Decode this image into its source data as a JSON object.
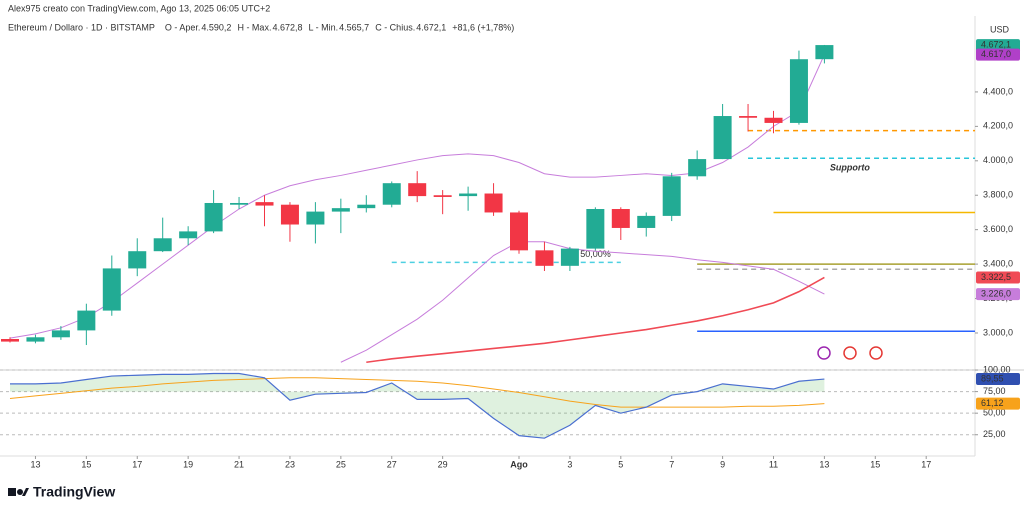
{
  "chart_data": {
    "type": "candlestick",
    "header": "Alex975 creato con TradingView.com, Ago 13, 2025 06:05 UTC+2",
    "symbol": "Ethereum / Dollaro · 1D · BITSTAMP",
    "ohlc_legend": [
      {
        "label": "O - Aper.",
        "value": "4.590,2"
      },
      {
        "label": "H - Max.",
        "value": "4.672,8"
      },
      {
        "label": "L - Min.",
        "value": "4.565,7"
      },
      {
        "label": "C - Chius.",
        "value": "4.672,1"
      }
    ],
    "change": "+81,6 (+1,78%)",
    "currency": "USD",
    "brand": "TradingView",
    "categories": [
      null,
      "13",
      null,
      "15",
      null,
      "17",
      null,
      "19",
      null,
      "21",
      null,
      "23",
      null,
      "25",
      null,
      "27",
      null,
      "29",
      null,
      null,
      "Ago",
      null,
      "3",
      null,
      "5",
      null,
      "7",
      null,
      "9",
      null,
      "11",
      null,
      "13",
      null,
      "15",
      null,
      "17",
      null
    ],
    "open": [
      2965,
      2950,
      2975,
      3015,
      3130,
      3375,
      3475,
      3550,
      3590,
      3745,
      3760,
      3745,
      3630,
      3705,
      3725,
      3745,
      3870,
      3800,
      3795,
      3810,
      3700,
      3480,
      3390,
      3490,
      3720,
      3610,
      3680,
      3910,
      4010,
      4260,
      4250,
      4220,
      4590.2,
      null,
      null,
      null,
      null,
      null
    ],
    "high": [
      2975,
      2990,
      3040,
      3170,
      3450,
      3550,
      3670,
      3620,
      3830,
      3790,
      3800,
      3760,
      3760,
      3780,
      3800,
      3880,
      3940,
      3830,
      3850,
      3870,
      3710,
      3530,
      3500,
      3730,
      3730,
      3700,
      3930,
      4060,
      4330,
      4330,
      4290,
      4640,
      4672.8,
      null,
      null,
      null,
      null,
      null
    ],
    "low": [
      2945,
      2940,
      2960,
      2930,
      3100,
      3330,
      3470,
      3510,
      3580,
      3720,
      3620,
      3530,
      3520,
      3580,
      3700,
      3730,
      3760,
      3690,
      3710,
      3680,
      3460,
      3360,
      3360,
      3480,
      3540,
      3560,
      3650,
      3890,
      4010,
      4170,
      4160,
      4210,
      4565.7,
      null,
      null,
      null,
      null,
      null
    ],
    "close": [
      2950,
      2975,
      3015,
      3130,
      3375,
      3475,
      3550,
      3590,
      3755,
      3755,
      3740,
      3630,
      3705,
      3725,
      3745,
      3870,
      3795,
      3790,
      3810,
      3700,
      3480,
      3390,
      3490,
      3720,
      3610,
      3680,
      3910,
      4010,
      4260,
      4250,
      4220,
      4590,
      4672.1,
      null,
      null,
      null,
      null,
      null
    ],
    "up_color": "#22ab94",
    "down_color": "#f23645",
    "overlays": [
      {
        "color": "#c77ddb",
        "values": [
          2970,
          2995,
          3030,
          3090,
          3180,
          3290,
          3400,
          3510,
          3620,
          3720,
          3800,
          3855,
          3890,
          3915,
          3945,
          3975,
          4005,
          4030,
          4040,
          4030,
          3990,
          3925,
          3905,
          3905,
          3915,
          3925,
          3915,
          3930,
          3990,
          4080,
          4200,
          4290,
          4617,
          null,
          null,
          null,
          null,
          null
        ]
      },
      {
        "color": "#c77ddb",
        "values": [
          null,
          null,
          null,
          null,
          null,
          null,
          null,
          null,
          null,
          null,
          null,
          null,
          null,
          2830,
          2900,
          2990,
          3080,
          3190,
          3320,
          3450,
          3530,
          3530,
          3490,
          3475,
          3465,
          3455,
          3445,
          3425,
          3410,
          3390,
          3370,
          3300,
          3226,
          null,
          null,
          null,
          null,
          null
        ]
      },
      {
        "color": "#f04a55",
        "values": [
          null,
          null,
          null,
          null,
          null,
          null,
          null,
          null,
          null,
          null,
          null,
          null,
          null,
          null,
          2830,
          2850,
          2865,
          2880,
          2895,
          2910,
          2925,
          2940,
          2960,
          2980,
          3000,
          3020,
          3045,
          3070,
          3100,
          3135,
          3175,
          3240,
          3322.5,
          null,
          null,
          null,
          null,
          null
        ]
      }
    ],
    "levels": [
      {
        "value": 3010,
        "color": "#2962ff"
      },
      {
        "value": 3700,
        "color": "#f5b800"
      },
      {
        "value": 3400,
        "color": "#a8a030"
      },
      {
        "value": 4175,
        "color": "#ff9800",
        "dash": true
      },
      {
        "value": 4015,
        "color": "#26c6da",
        "dash": true,
        "label": "Supporto"
      },
      {
        "value": 3410,
        "color": "#4dd0e1",
        "dash": true,
        "label": "50,00%"
      },
      {
        "value": 3370,
        "color": "#aaaaaa",
        "dash": true
      }
    ],
    "price_labels": [
      {
        "value": 4672.1,
        "label": "4.672,1",
        "color": "#22ab94"
      },
      {
        "value": 4617,
        "label": "4.617,0",
        "color": "#b040c8"
      },
      {
        "value": 3322.5,
        "label": "3.322,5",
        "color": "#f04a55"
      },
      {
        "value": 3226,
        "label": "3.226,0",
        "color": "#c77ddb"
      }
    ],
    "ylim": [
      2785,
      4841
    ],
    "yticks": [
      {
        "value": 3000,
        "label": "3.000,0"
      },
      {
        "value": 3200,
        "label": "3.200,0"
      },
      {
        "value": 3400,
        "label": "3.400,0"
      },
      {
        "value": 3600,
        "label": "3.600,0"
      },
      {
        "value": 3800,
        "label": "3.800,0"
      },
      {
        "value": 4000,
        "label": "4.000,0"
      },
      {
        "value": 4200,
        "label": "4.200,0"
      },
      {
        "value": 4400,
        "label": "4.400,0"
      }
    ],
    "rsi": {
      "color": "#4a6fd0",
      "values": [
        84,
        84,
        85,
        89,
        93,
        94,
        95,
        95,
        96,
        96,
        91,
        65,
        72,
        73,
        74,
        85,
        66,
        66,
        67,
        44,
        24,
        21,
        36,
        59,
        50,
        57,
        71,
        75,
        84,
        81,
        78,
        87,
        89.55,
        null,
        null,
        null,
        null,
        null
      ],
      "ma_color": "#f7a21b",
      "ma": [
        67,
        70,
        73,
        76,
        79,
        81,
        84,
        86,
        88,
        89,
        90,
        91,
        91,
        90,
        89,
        88,
        87,
        85,
        82,
        78,
        74,
        69,
        64,
        60,
        57,
        57,
        57,
        57,
        57,
        58,
        58,
        59,
        61.12,
        null,
        null,
        null,
        null,
        null
      ],
      "ylim": [
        5,
        107
      ],
      "yticks": [
        {
          "value": 25,
          "label": "25,00"
        },
        {
          "value": 50,
          "label": "50,00"
        },
        {
          "value": 75,
          "label": "75,00"
        },
        {
          "value": 100,
          "label": "100,00"
        }
      ],
      "labels": [
        {
          "value": 89.55,
          "label": "89,55",
          "color": "#2f4fb0"
        },
        {
          "value": 61.12,
          "label": "61,12",
          "color": "#f7a21b"
        }
      ]
    }
  }
}
